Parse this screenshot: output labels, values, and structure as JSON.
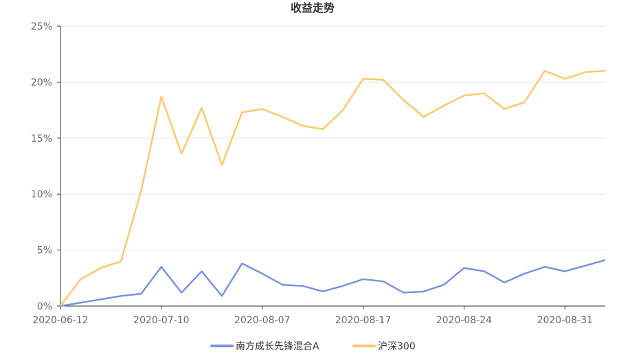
{
  "chart_data": {
    "type": "line",
    "title": "收益走势",
    "xlabel": "",
    "ylabel": "",
    "ylim": [
      0,
      25
    ],
    "y_ticks": [
      "0%",
      "5%",
      "10%",
      "15%",
      "20%",
      "25%"
    ],
    "x_tick_labels": [
      "2020-06-12",
      "2020-07-10",
      "2020-08-07",
      "2020-08-17",
      "2020-08-24",
      "2020-08-31"
    ],
    "x_tick_indices": [
      0,
      5,
      10,
      15,
      20,
      25
    ],
    "point_count": 28,
    "grid": true,
    "legend_position": "bottom",
    "series": [
      {
        "name": "南方成长先锋混合A",
        "color": "#7893e0",
        "values": [
          0,
          0.3,
          0.6,
          0.9,
          1.1,
          3.5,
          1.2,
          3.1,
          0.9,
          3.8,
          2.9,
          1.9,
          1.8,
          1.3,
          1.8,
          2.4,
          2.2,
          1.2,
          1.3,
          1.9,
          3.4,
          3.1,
          2.1,
          2.9,
          3.5,
          3.1,
          3.6,
          4.1
        ]
      },
      {
        "name": "沪深300",
        "color": "#fdc86b",
        "values": [
          0,
          2.4,
          3.4,
          4.0,
          10.3,
          18.7,
          13.6,
          17.7,
          12.6,
          17.3,
          17.6,
          16.9,
          16.1,
          15.8,
          17.5,
          20.3,
          20.2,
          18.4,
          16.9,
          17.9,
          18.8,
          19.0,
          17.6,
          18.2,
          21.0,
          20.3,
          20.9,
          21.0
        ]
      }
    ]
  }
}
